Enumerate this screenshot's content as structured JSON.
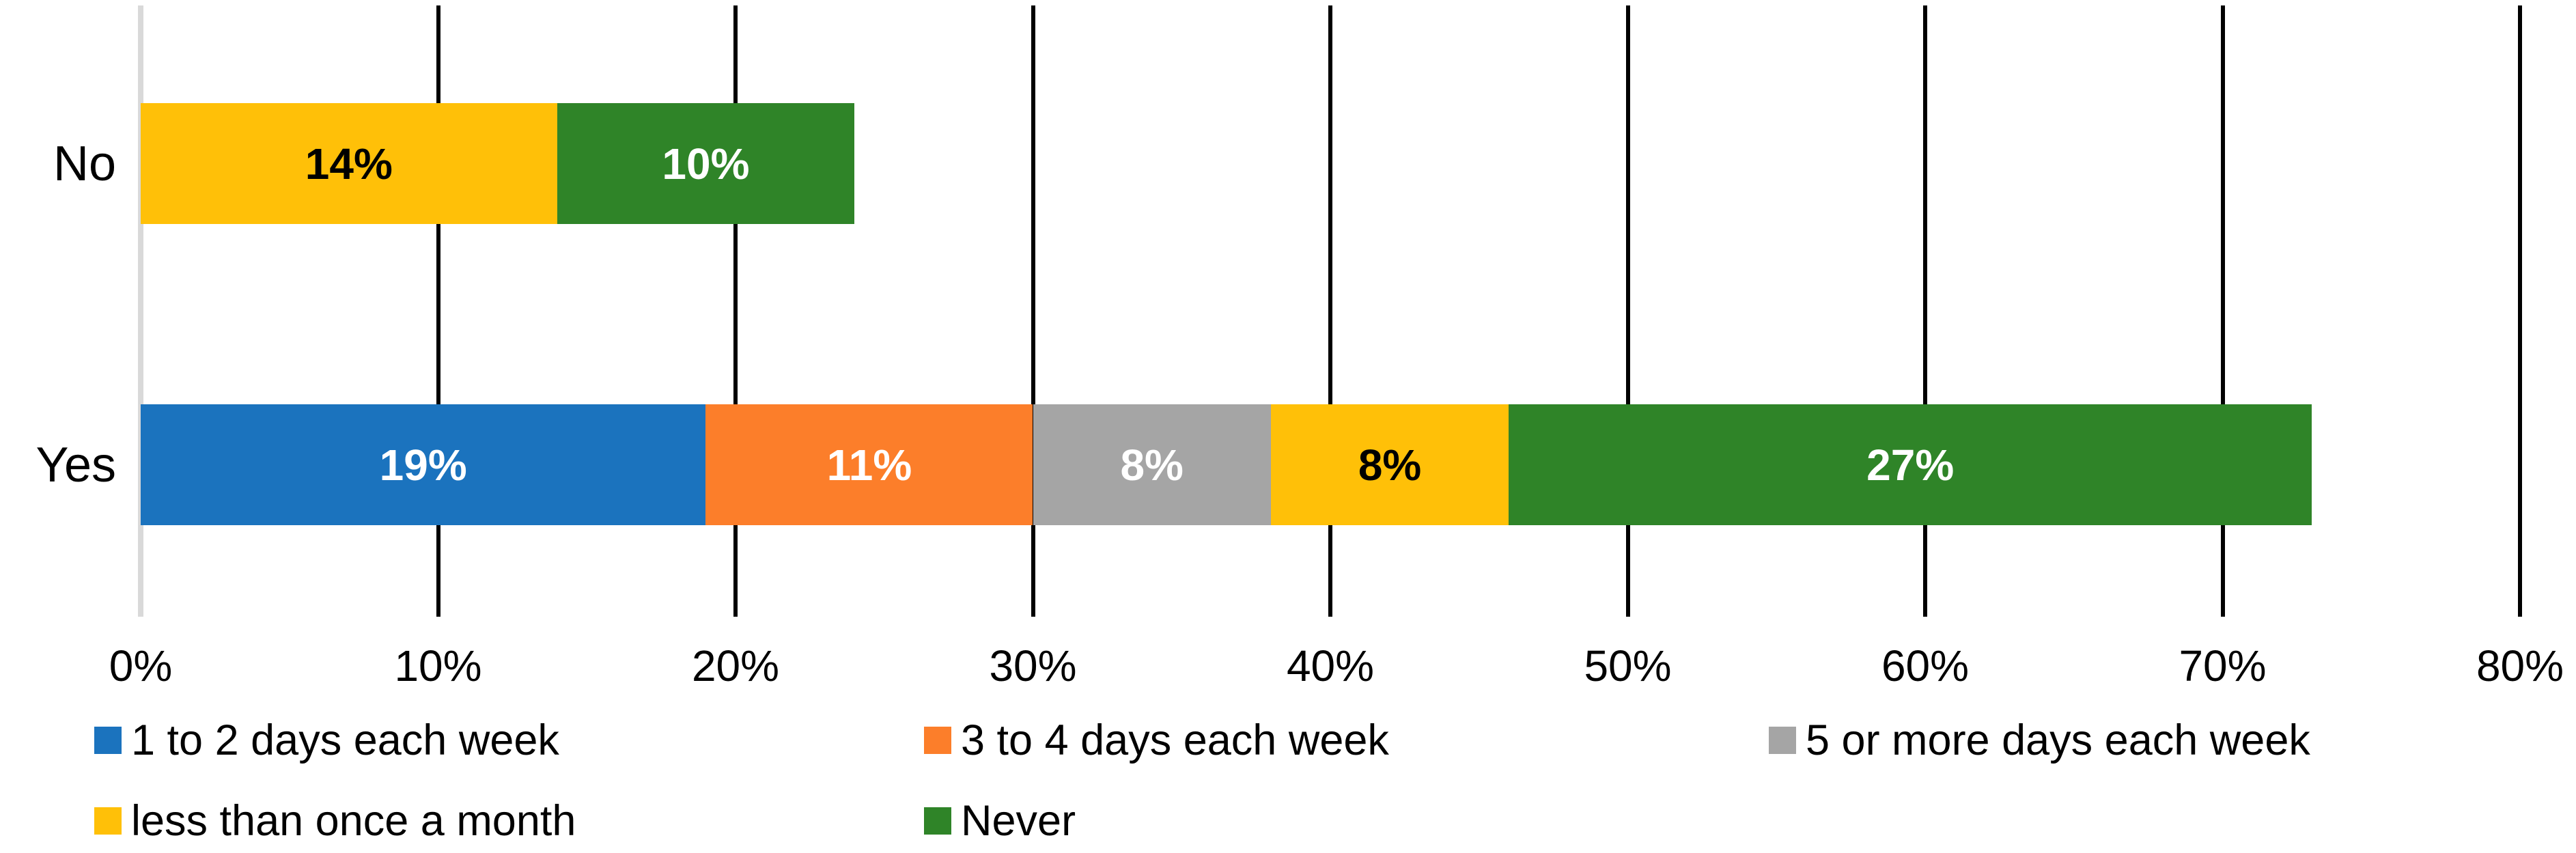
{
  "chart_data": {
    "type": "bar",
    "orientation": "horizontal",
    "stacked": true,
    "title": "",
    "xlabel": "",
    "ylabel": "",
    "xlim": [
      0,
      80
    ],
    "grid": true,
    "legend_position": "bottom",
    "categories": [
      "No",
      "Yes"
    ],
    "series": [
      {
        "name": "1 to 2 days each week",
        "color": "#1B73BE",
        "label_color": "#FFFFFF",
        "values": [
          0,
          19
        ]
      },
      {
        "name": "3 to 4 days each week",
        "color": "#FC7E2A",
        "label_color": "#FFFFFF",
        "values": [
          0,
          11
        ]
      },
      {
        "name": "5 or more days each week",
        "color": "#A5A5A5",
        "label_color": "#FFFFFF",
        "values": [
          0,
          8
        ]
      },
      {
        "name": "less than once a month",
        "color": "#FFC008",
        "label_color": "#000000",
        "values": [
          14,
          8
        ]
      },
      {
        "name": "Never",
        "color": "#2F8428",
        "label_color": "#FFFFFF",
        "values": [
          10,
          27
        ]
      }
    ],
    "data_labels": [
      [
        "14%",
        "10%"
      ],
      [
        "19%",
        "11%",
        "8%",
        "8%",
        "27%"
      ]
    ],
    "x_tick_labels": [
      "0%",
      "10%",
      "20%",
      "30%",
      "40%",
      "50%",
      "60%",
      "70%",
      "80%"
    ],
    "colors": {
      "gridline": "#000000",
      "axis_line": "#D9D9D9",
      "text": "#000000"
    }
  }
}
